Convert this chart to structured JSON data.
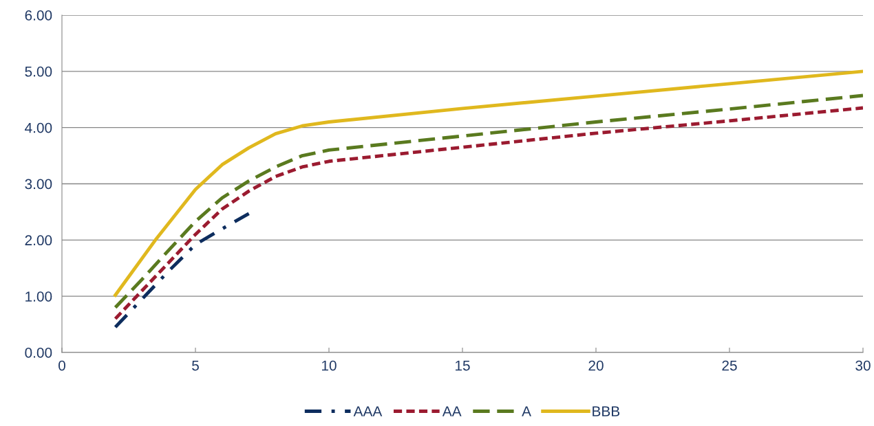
{
  "chart_data": {
    "type": "line",
    "xlim": [
      0,
      30
    ],
    "xticks": [
      0,
      5,
      10,
      15,
      20,
      25,
      30
    ],
    "ylim": [
      0,
      6
    ],
    "yticks": [
      {
        "value": 0,
        "label": "0.00"
      },
      {
        "value": 1,
        "label": "1.00"
      },
      {
        "value": 2,
        "label": "2.00"
      },
      {
        "value": 3,
        "label": "3.00"
      },
      {
        "value": 4,
        "label": "4.00"
      },
      {
        "value": 5,
        "label": "5.00"
      },
      {
        "value": 6,
        "label": "6.00"
      }
    ],
    "grid": "y",
    "legend": "bottom",
    "series": [
      {
        "name": "AAA",
        "color": "#0d2d5e",
        "line_style": "dashdot",
        "x": [
          2,
          3,
          4,
          5,
          6,
          7
        ],
        "values": [
          0.45,
          0.95,
          1.45,
          1.92,
          2.2,
          2.47
        ]
      },
      {
        "name": "AA",
        "color": "#9b1b30",
        "line_style": "dotted",
        "x": [
          2,
          3,
          4,
          5,
          6,
          7,
          8,
          9,
          10,
          15,
          20,
          25,
          30
        ],
        "values": [
          0.6,
          1.1,
          1.6,
          2.1,
          2.55,
          2.87,
          3.13,
          3.3,
          3.4,
          3.65,
          3.9,
          4.12,
          4.35
        ]
      },
      {
        "name": "A",
        "color": "#5a7a1f",
        "line_style": "dashed",
        "x": [
          2,
          3,
          4,
          5,
          6,
          7,
          8,
          9,
          10,
          15,
          20,
          25,
          30
        ],
        "values": [
          0.8,
          1.3,
          1.82,
          2.33,
          2.75,
          3.05,
          3.3,
          3.5,
          3.6,
          3.85,
          4.1,
          4.33,
          4.57
        ]
      },
      {
        "name": "BBB",
        "color": "#e0b81e",
        "line_style": "solid",
        "x": [
          2,
          3.5,
          5,
          6,
          7,
          8,
          9,
          10,
          15,
          20,
          25,
          30
        ],
        "values": [
          1.02,
          2.0,
          2.9,
          3.34,
          3.64,
          3.89,
          4.03,
          4.1,
          4.34,
          4.56,
          4.78,
          5.0
        ]
      }
    ]
  }
}
